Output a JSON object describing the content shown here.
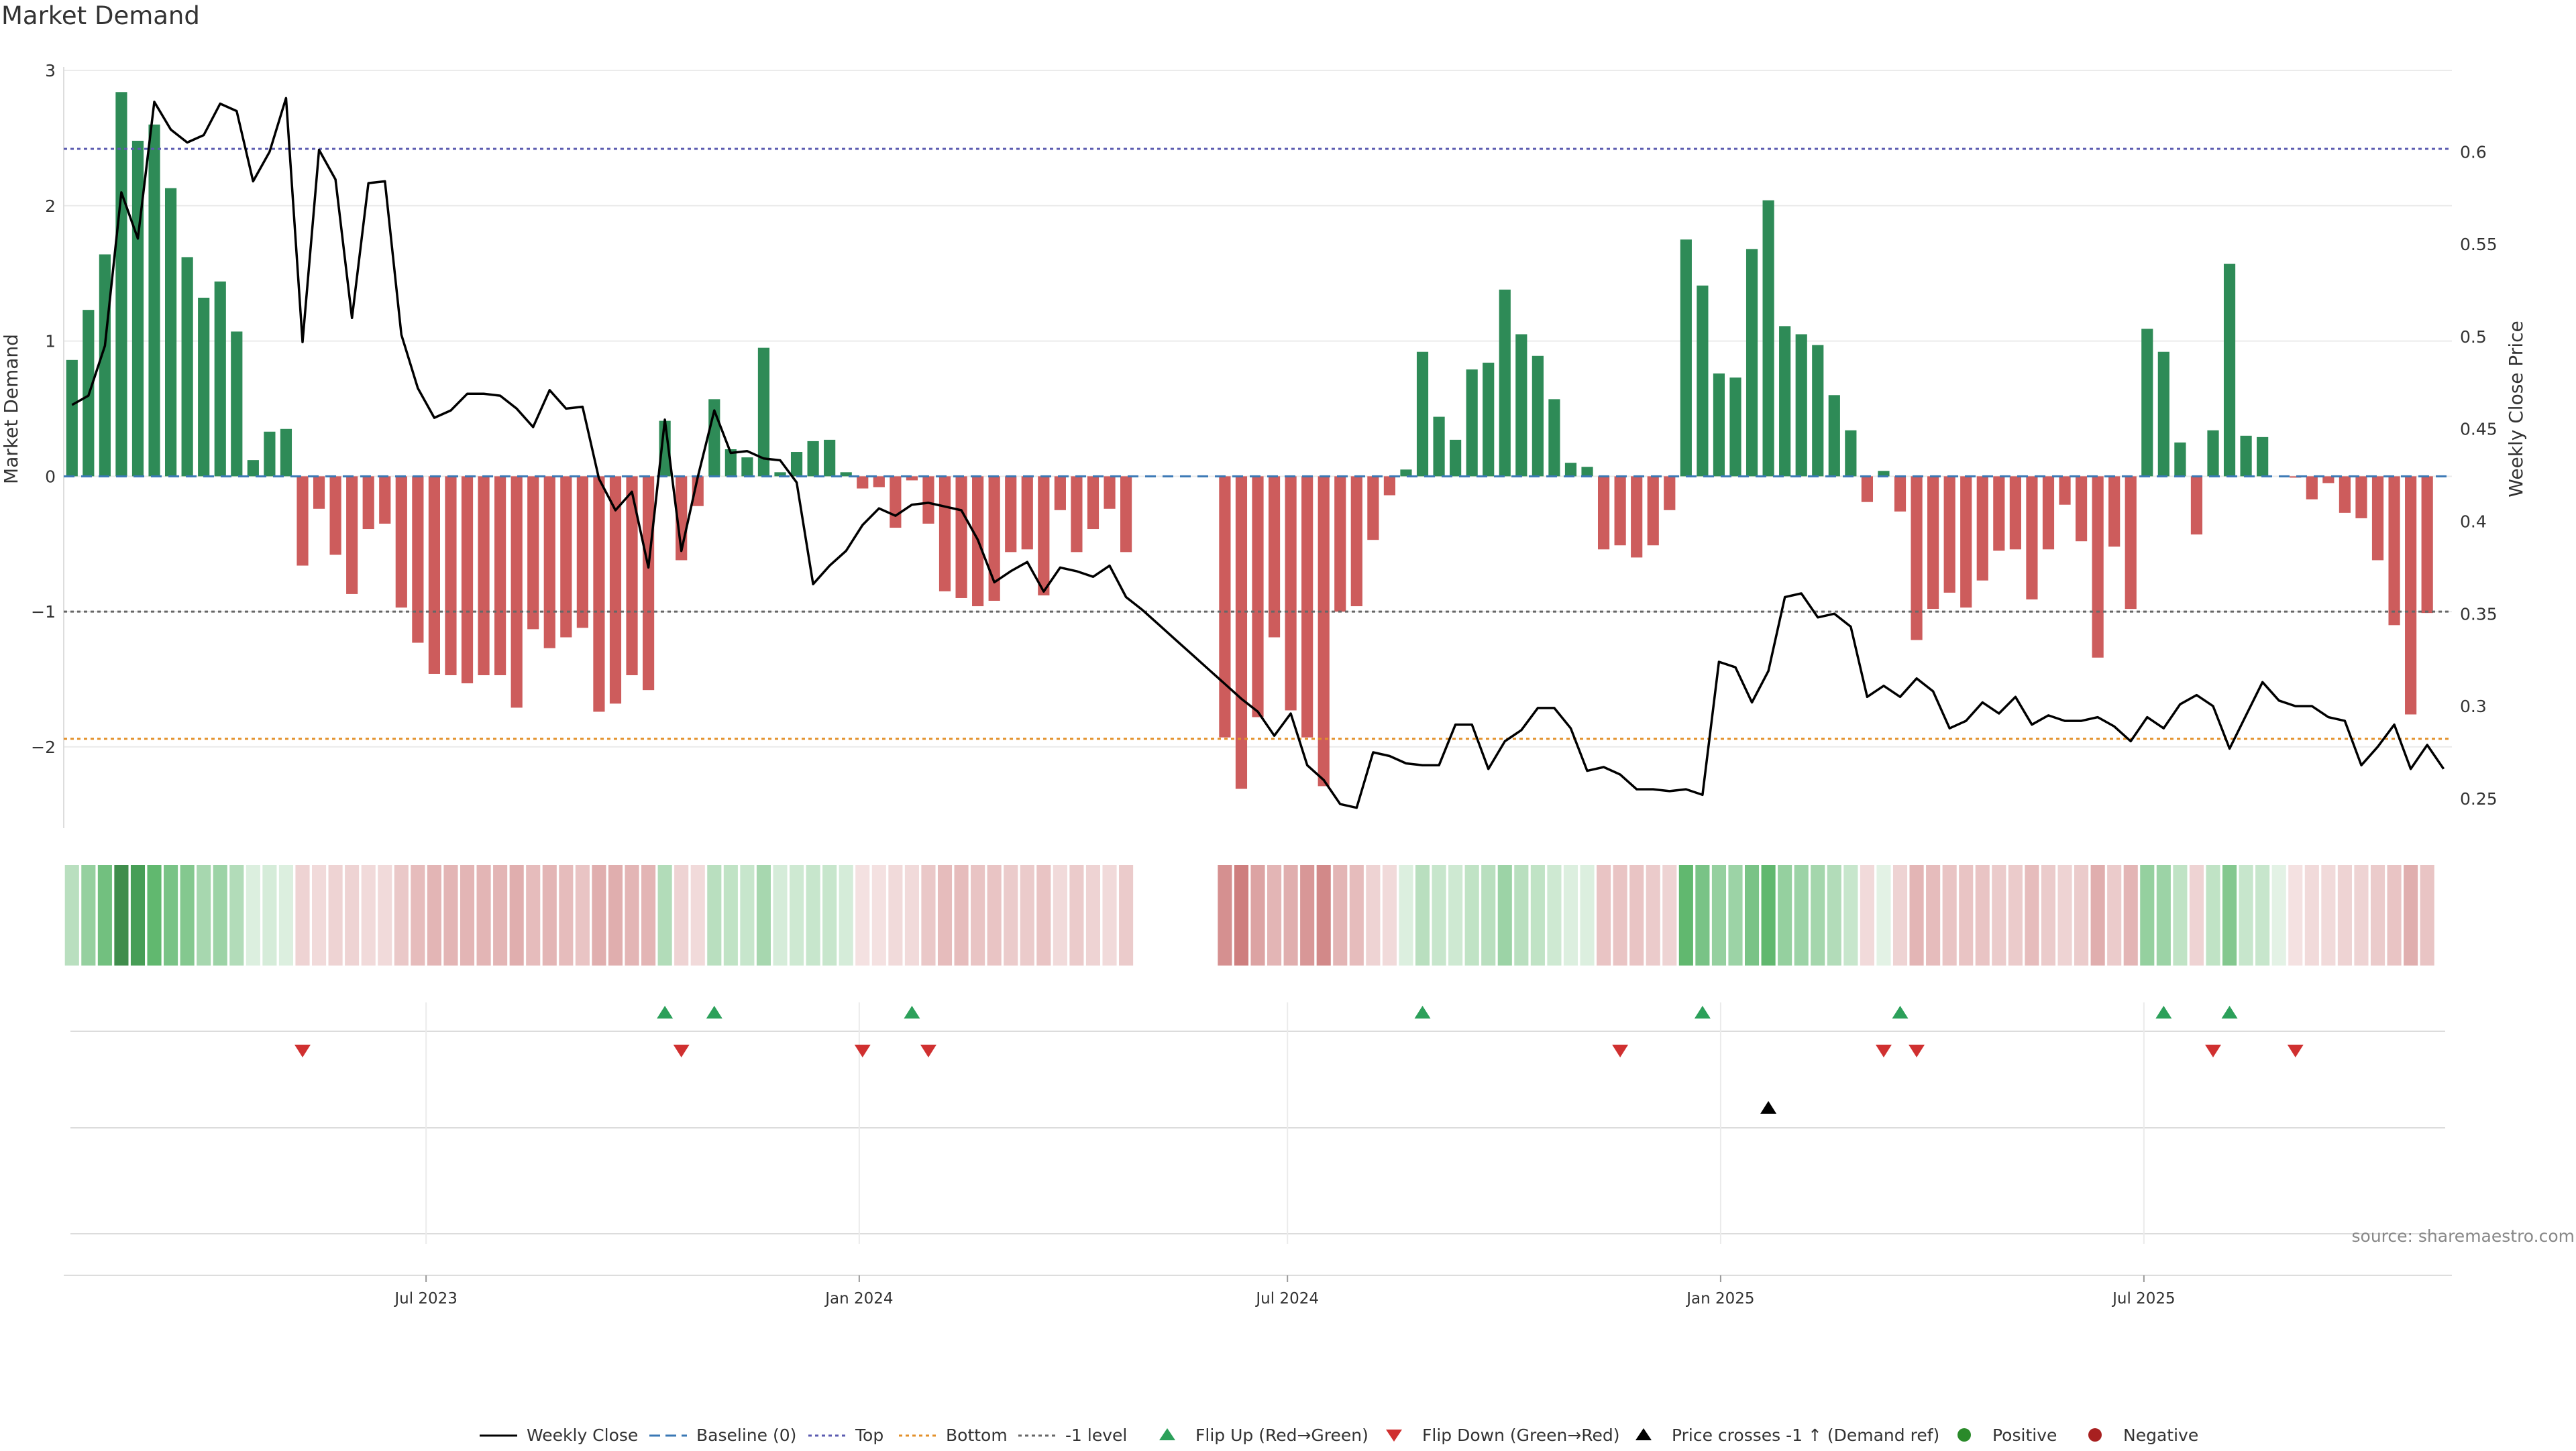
{
  "chart_data": {
    "type": "bar+line",
    "title": "Market Demand",
    "ylabel_left": "Market Demand",
    "ylabel_right": "Weekly Close Price",
    "ylim_left": [
      -2.6,
      3.0
    ],
    "ylim_right": [
      0.234,
      0.644
    ],
    "yticks_left": [
      3,
      2,
      1,
      0,
      -1,
      -2
    ],
    "yticks_right": [
      0.6,
      0.55,
      0.5,
      0.45,
      0.4,
      0.35,
      0.3,
      0.25
    ],
    "reference_levels": {
      "top": 2.42,
      "baseline": 0,
      "minus_one": -1,
      "bottom": -1.94
    },
    "weeks": 145,
    "first_week": "2023-02-27",
    "gap_weeks": [
      65,
      66,
      67,
      68,
      69
    ],
    "x_ticks": [
      {
        "label": "Jul 2023",
        "week": 22
      },
      {
        "label": "Jan 2024",
        "week": 48.3
      },
      {
        "label": "Jul 2024",
        "week": 74.3
      },
      {
        "label": "Jan 2025",
        "week": 100.6
      },
      {
        "label": "Jul 2025",
        "week": 126.3
      }
    ],
    "demand": [
      0.86,
      1.23,
      1.64,
      2.84,
      2.48,
      2.6,
      2.13,
      1.62,
      1.32,
      1.44,
      1.07,
      0.12,
      0.33,
      0.35,
      -0.66,
      -0.24,
      -0.58,
      -0.87,
      -0.39,
      -0.35,
      -0.97,
      -1.23,
      -1.46,
      -1.47,
      -1.53,
      -1.47,
      -1.47,
      -1.71,
      -1.13,
      -1.27,
      -1.19,
      -1.12,
      -1.74,
      -1.68,
      -1.47,
      -1.58,
      0.41,
      -0.62,
      -0.22,
      0.57,
      0.2,
      0.14,
      0.95,
      0.03,
      0.18,
      0.26,
      0.27,
      0.03,
      -0.09,
      -0.08,
      -0.38,
      -0.03,
      -0.35,
      -0.85,
      -0.9,
      -0.96,
      -0.92,
      -0.56,
      -0.54,
      -0.88,
      -0.25,
      -0.56,
      -0.39,
      -0.24,
      -0.56,
      0,
      0,
      0,
      0,
      0,
      -1.93,
      -2.31,
      -1.78,
      -1.19,
      -1.73,
      -1.93,
      -2.29,
      -1.0,
      -0.96,
      -0.47,
      -0.14,
      0.05,
      0.92,
      0.44,
      0.27,
      0.79,
      0.84,
      1.38,
      1.05,
      0.89,
      0.57,
      0.1,
      0.07,
      -0.54,
      -0.51,
      -0.6,
      -0.51,
      -0.25,
      1.75,
      1.41,
      0.76,
      0.73,
      1.68,
      2.04,
      1.11,
      1.05,
      0.97,
      0.6,
      0.34,
      -0.19,
      0.04,
      -0.26,
      -1.21,
      -0.98,
      -0.86,
      -0.97,
      -0.77,
      -0.55,
      -0.54,
      -0.91,
      -0.54,
      -0.21,
      -0.48,
      -1.34,
      -0.52,
      -0.98,
      1.09,
      0.92,
      0.25,
      -0.43,
      0.34,
      1.57,
      0.3,
      0.29,
      0,
      -0.01,
      -0.17,
      -0.05,
      -0.27,
      -0.31,
      -0.62,
      -1.1,
      -1.76,
      -1.01
    ],
    "close": [
      0.463,
      0.468,
      0.495,
      0.578,
      0.553,
      0.627,
      0.612,
      0.605,
      0.609,
      0.626,
      0.622,
      0.584,
      0.6,
      0.629,
      0.497,
      0.601,
      0.585,
      0.51,
      0.583,
      0.584,
      0.501,
      0.472,
      0.456,
      0.46,
      0.469,
      0.469,
      0.468,
      0.461,
      0.451,
      0.471,
      0.461,
      0.462,
      0.423,
      0.406,
      0.416,
      0.375,
      0.455,
      0.384,
      0.424,
      0.46,
      0.437,
      0.438,
      0.434,
      0.433,
      0.421,
      0.366,
      0.376,
      0.384,
      0.398,
      0.407,
      0.403,
      0.409,
      0.41,
      0.408,
      0.406,
      0.39,
      0.367,
      0.373,
      0.378,
      0.362,
      0.375,
      0.373,
      0.37,
      0.376,
      0.359,
      0.352,
      0.344,
      0.336,
      0.328,
      0.32,
      0.312,
      0.304,
      0.297,
      0.284,
      0.296,
      0.268,
      0.26,
      0.247,
      0.245,
      0.275,
      0.273,
      0.269,
      0.268,
      0.268,
      0.29,
      0.29,
      0.266,
      0.281,
      0.287,
      0.299,
      0.299,
      0.288,
      0.265,
      0.267,
      0.263,
      0.255,
      0.255,
      0.254,
      0.255,
      0.252,
      0.324,
      0.321,
      0.302,
      0.319,
      0.359,
      0.361,
      0.348,
      0.35,
      0.343,
      0.305,
      0.311,
      0.305,
      0.315,
      0.308,
      0.288,
      0.292,
      0.302,
      0.296,
      0.305,
      0.29,
      0.295,
      0.292,
      0.292,
      0.294,
      0.289,
      0.281,
      0.294,
      0.288,
      0.301,
      0.306,
      0.3,
      0.277,
      0.295,
      0.313,
      0.303,
      0.3,
      0.3,
      0.294,
      0.292,
      0.268,
      0.278,
      0.29,
      0.266,
      0.279,
      0.266
    ],
    "strip_lightness": [
      0.8,
      0.7,
      0.6,
      0.4,
      0.45,
      0.55,
      0.62,
      0.65,
      0.75,
      0.72,
      0.78,
      0.9,
      0.88,
      0.9,
      0.88,
      0.9,
      0.88,
      0.88,
      0.9,
      0.9,
      0.85,
      0.82,
      0.8,
      0.8,
      0.8,
      0.8,
      0.8,
      0.78,
      0.82,
      0.8,
      0.82,
      0.84,
      0.78,
      0.78,
      0.8,
      0.8,
      0.78,
      0.88,
      0.9,
      0.8,
      0.82,
      0.84,
      0.75,
      0.88,
      0.86,
      0.84,
      0.84,
      0.88,
      0.92,
      0.92,
      0.9,
      0.9,
      0.85,
      0.82,
      0.82,
      0.84,
      0.84,
      0.86,
      0.86,
      0.84,
      0.9,
      0.86,
      0.88,
      0.9,
      0.86,
      1,
      1,
      1,
      1,
      1,
      0.7,
      0.65,
      0.75,
      0.8,
      0.78,
      0.72,
      0.68,
      0.8,
      0.82,
      0.88,
      0.9,
      0.9,
      0.8,
      0.84,
      0.86,
      0.82,
      0.8,
      0.72,
      0.8,
      0.82,
      0.86,
      0.9,
      0.9,
      0.84,
      0.84,
      0.84,
      0.86,
      0.88,
      0.55,
      0.62,
      0.7,
      0.72,
      0.62,
      0.55,
      0.7,
      0.72,
      0.74,
      0.78,
      0.84,
      0.9,
      0.92,
      0.88,
      0.8,
      0.82,
      0.84,
      0.84,
      0.84,
      0.86,
      0.86,
      0.82,
      0.86,
      0.88,
      0.86,
      0.78,
      0.86,
      0.8,
      0.7,
      0.72,
      0.82,
      0.88,
      0.82,
      0.65,
      0.84,
      0.84,
      0.92,
      0.92,
      0.9,
      0.9,
      0.88,
      0.88,
      0.86,
      0.84,
      0.78,
      0.84
    ],
    "flip_up_weeks": [
      36,
      39,
      51,
      82,
      99,
      111,
      127,
      131
    ],
    "flip_down_weeks": [
      14,
      37,
      48,
      52,
      94,
      110,
      112,
      130,
      135
    ],
    "price_cross_weeks": [
      103
    ],
    "legend": [
      "Weekly Close",
      "Baseline (0)",
      "Top",
      "Bottom",
      "-1 level",
      "Flip Up (Red→Green)",
      "Flip Down (Green→Red)",
      "Price crosses -1 ↑ (Demand ref)",
      "Positive",
      "Negative"
    ],
    "colors": {
      "positive": "#2e8b57",
      "negative": "#cd5c5c",
      "price": "#000000",
      "top": "#5b5bb0",
      "bottom": "#e3902a",
      "baseline": "#3a78b5",
      "minus_one": "#666666",
      "flip_up": "#2ca05a",
      "flip_down": "#d03030",
      "cross": "#000000",
      "legend_positive": "#2a8a2a",
      "legend_negative": "#a82020"
    }
  },
  "source": "source: sharemaestro.com"
}
